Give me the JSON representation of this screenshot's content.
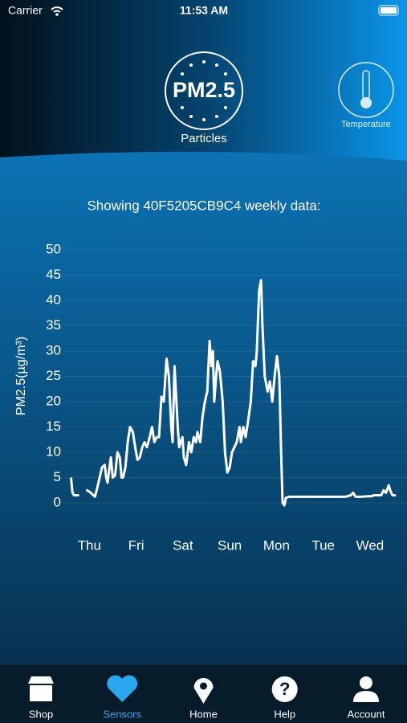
{
  "status": {
    "carrier": "Carrier",
    "time": "11:53 AM"
  },
  "header": {
    "primary_label": "PM2.5",
    "primary_caption": "Particles",
    "secondary_caption": "Temperature"
  },
  "chart_data": {
    "type": "line",
    "title": "Showing 40F5205CB9C4 weekly data:",
    "y_label": "PM2.5(µg/m³)",
    "x": [
      -0.39,
      -0.36,
      -0.33,
      -0.24,
      -0.15,
      -0.05,
      0.03,
      0.12,
      0.17,
      0.22,
      0.27,
      0.33,
      0.36,
      0.39,
      0.43,
      0.46,
      0.5,
      0.55,
      0.6,
      0.65,
      0.69,
      0.72,
      0.77,
      0.82,
      0.87,
      0.93,
      0.98,
      1.03,
      1.08,
      1.13,
      1.18,
      1.23,
      1.29,
      1.34,
      1.39,
      1.44,
      1.49,
      1.54,
      1.59,
      1.65,
      1.7,
      1.75,
      1.78,
      1.82,
      1.85,
      1.89,
      1.92,
      1.95,
      1.99,
      2.02,
      2.07,
      2.13,
      2.18,
      2.23,
      2.28,
      2.31,
      2.37,
      2.42,
      2.47,
      2.52,
      2.57,
      2.61,
      2.64,
      2.67,
      2.71,
      2.74,
      2.79,
      2.85,
      2.9,
      2.95,
      3.0,
      3.05,
      3.1,
      3.15,
      3.21,
      3.24,
      3.29,
      3.34,
      3.39,
      3.45,
      3.5,
      3.55,
      3.58,
      3.63,
      3.67,
      3.7,
      3.75,
      3.81,
      3.86,
      3.91,
      3.96,
      4.01,
      4.06,
      4.1,
      4.13,
      4.17,
      4.2,
      4.27,
      4.61,
      4.95,
      5.3,
      5.47,
      5.59,
      5.64,
      5.69,
      5.81,
      5.95,
      6.02,
      6.09,
      6.15,
      6.24,
      6.29,
      6.34,
      6.4,
      6.43,
      6.48,
      6.53
    ],
    "series": [
      {
        "color": "#ffffff",
        "values": [
          4.8,
          2,
          1.5,
          1.5,
          null,
          2.5,
          2,
          1.2,
          3,
          5,
          7,
          7.5,
          5,
          4,
          7,
          9,
          5,
          5.5,
          10,
          9,
          5,
          5,
          7,
          12,
          15,
          14,
          11,
          8.5,
          9,
          11,
          12,
          11,
          13,
          15,
          12,
          13,
          13,
          21,
          20,
          28.5,
          25,
          15,
          12,
          27,
          22,
          15,
          11,
          12,
          13,
          9,
          7.5,
          12,
          10,
          13,
          12,
          14,
          12,
          17,
          20,
          22,
          32,
          27,
          30,
          20,
          25,
          28,
          26,
          20,
          10,
          6,
          7,
          10,
          11,
          12,
          15,
          12,
          15,
          13,
          16,
          20,
          28,
          27,
          30,
          42,
          44,
          35,
          25,
          22,
          24,
          20,
          25,
          29,
          25,
          10,
          0,
          -0.5,
          1,
          1.2,
          1.2,
          1.2,
          1.2,
          1.2,
          1.5,
          2,
          1.2,
          1.2,
          1.3,
          1.3,
          1.5,
          1.5,
          1.5,
          2.5,
          2,
          3.5,
          2.5,
          1.5,
          1.5
        ]
      }
    ],
    "xlim": [
      -0.4,
      6.55
    ],
    "ylim": [
      0,
      50
    ],
    "xticks": [
      {
        "value": 0,
        "label": "Thu"
      },
      {
        "value": 1,
        "label": "Fri"
      },
      {
        "value": 2,
        "label": "Sat"
      },
      {
        "value": 3,
        "label": "Sun"
      },
      {
        "value": 4,
        "label": "Mon"
      },
      {
        "value": 5,
        "label": "Tue"
      },
      {
        "value": 6,
        "label": "Wed"
      }
    ],
    "yticks": [
      0,
      5,
      10,
      15,
      20,
      25,
      30,
      35,
      40,
      45,
      50
    ],
    "grid": true
  },
  "tabs": [
    {
      "label": "Shop",
      "active": false
    },
    {
      "label": "Sensors",
      "active": true
    },
    {
      "label": "Home",
      "active": false
    },
    {
      "label": "Help",
      "active": false
    },
    {
      "label": "Account",
      "active": false
    }
  ]
}
